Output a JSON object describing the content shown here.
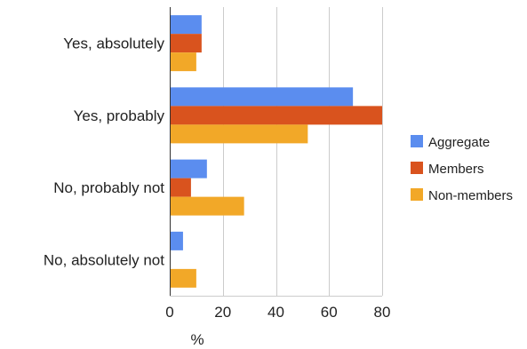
{
  "chart_data": {
    "type": "bar",
    "orientation": "horizontal",
    "categories": [
      "Yes, absolutely",
      "Yes, probably",
      "No, probably not",
      "No, absolutely not"
    ],
    "series": [
      {
        "name": "Aggregate",
        "values": [
          12,
          69,
          14,
          5
        ],
        "color": "#5b8def"
      },
      {
        "name": "Members",
        "values": [
          12,
          80,
          8,
          0
        ],
        "color": "#d9531e"
      },
      {
        "name": "Non-members",
        "values": [
          10,
          52,
          28,
          10
        ],
        "color": "#f2a828"
      }
    ],
    "xlabel": "%",
    "xlim": [
      0,
      80
    ],
    "xticks": [
      0,
      20,
      40,
      60,
      80
    ],
    "grid": true,
    "legend_position": "right"
  }
}
